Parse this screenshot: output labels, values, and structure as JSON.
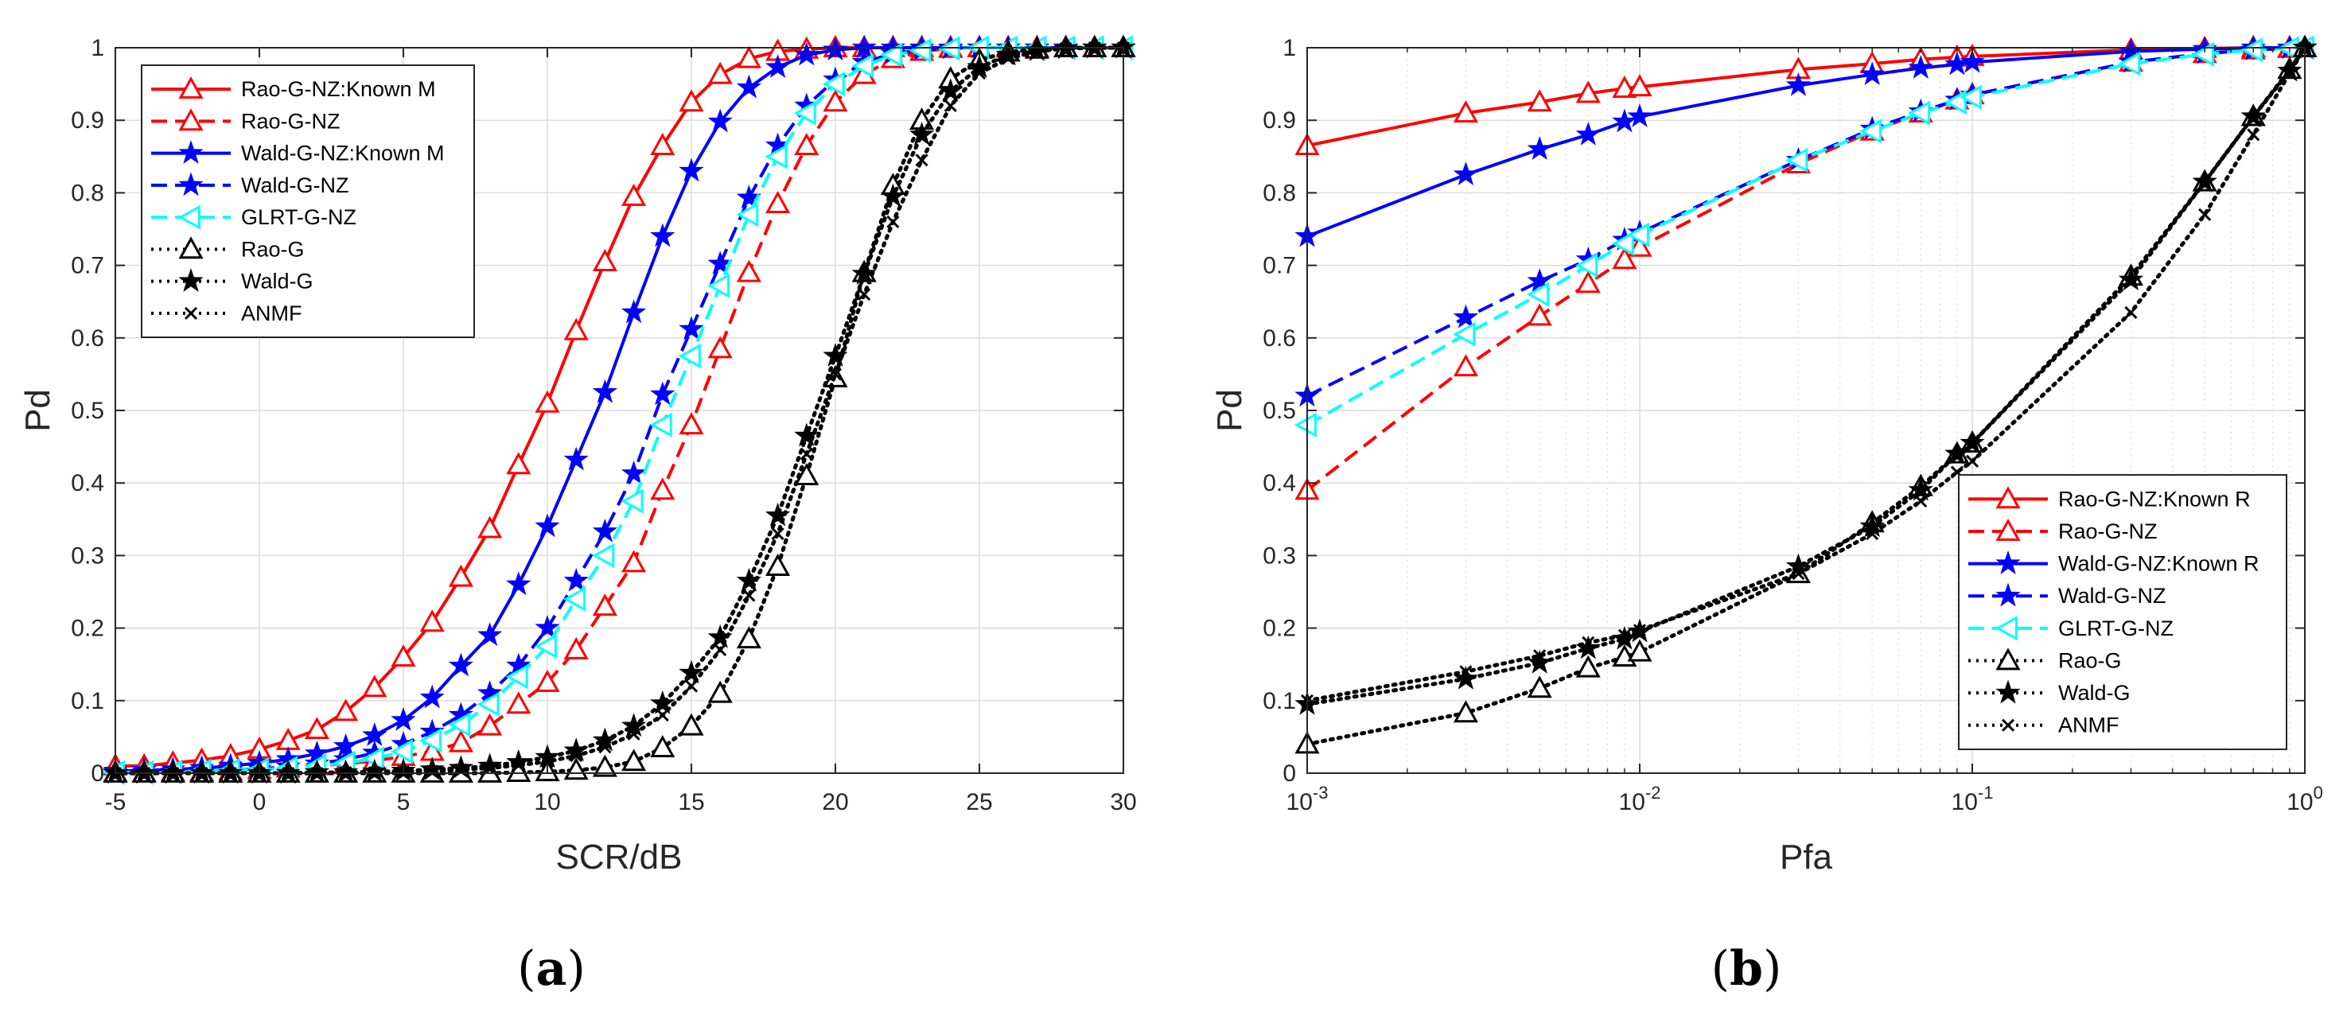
{
  "colors": {
    "red": "#ff0000",
    "blue": "#0000ff",
    "cyan": "#00ffff",
    "black": "#000000",
    "grid": "#dcdcdc",
    "axis": "#262626"
  },
  "chart_data": [
    {
      "type": "line",
      "subplot_label": {
        "open": "(",
        "letter": "a",
        "close": ")"
      },
      "xlabel": "SCR/dB",
      "ylabel": "Pd",
      "xscale": "linear",
      "xlim": [
        -5,
        30
      ],
      "ylim": [
        0,
        1
      ],
      "xticks": [
        -5,
        0,
        5,
        10,
        15,
        20,
        25,
        30
      ],
      "xtick_labels": [
        "-5",
        "0",
        "5",
        "10",
        "15",
        "20",
        "25",
        "30"
      ],
      "yticks": [
        0,
        0.1,
        0.2,
        0.3,
        0.4,
        0.5,
        0.6,
        0.7,
        0.8,
        0.9,
        1
      ],
      "ytick_labels": [
        "0",
        "0.1",
        "0.2",
        "0.3",
        "0.4",
        "0.5",
        "0.6",
        "0.7",
        "0.8",
        "0.9",
        "1"
      ],
      "grid": true,
      "legend_position": "top-left",
      "x": [
        -5,
        -4,
        -3,
        -2,
        -1,
        0,
        1,
        2,
        3,
        4,
        5,
        6,
        7,
        8,
        9,
        10,
        11,
        12,
        13,
        14,
        15,
        16,
        17,
        18,
        19,
        20,
        21,
        22,
        23,
        24,
        25,
        26,
        27,
        28,
        29,
        30
      ],
      "series": [
        {
          "name": "Rao-G-NZ:Known M",
          "color": "#ff0000",
          "dash": "solid",
          "marker": "triangle",
          "values": [
            0.01,
            0.01,
            0.014,
            0.018,
            0.024,
            0.033,
            0.045,
            0.06,
            0.085,
            0.118,
            0.16,
            0.208,
            0.27,
            0.337,
            0.425,
            0.51,
            0.61,
            0.705,
            0.795,
            0.865,
            0.925,
            0.963,
            0.985,
            0.995,
            0.998,
            1,
            1,
            1,
            1,
            1,
            1,
            1,
            1,
            1,
            1,
            1
          ]
        },
        {
          "name": "Rao-G-NZ",
          "color": "#ff0000",
          "dash": "dashed",
          "marker": "triangle",
          "values": [
            0.001,
            0.001,
            0.002,
            0.002,
            0.003,
            0.005,
            0.007,
            0.01,
            0.013,
            0.017,
            0.023,
            0.03,
            0.042,
            0.065,
            0.095,
            0.125,
            0.17,
            0.23,
            0.29,
            0.39,
            0.48,
            0.585,
            0.69,
            0.785,
            0.865,
            0.925,
            0.963,
            0.985,
            0.995,
            0.999,
            1,
            1,
            1,
            1,
            1,
            1
          ]
        },
        {
          "name": "Wald-G-NZ:Known M",
          "color": "#0000ff",
          "dash": "solid",
          "marker": "star",
          "values": [
            0.003,
            0.004,
            0.005,
            0.007,
            0.01,
            0.014,
            0.019,
            0.027,
            0.037,
            0.052,
            0.073,
            0.104,
            0.148,
            0.19,
            0.26,
            0.34,
            0.432,
            0.525,
            0.635,
            0.74,
            0.83,
            0.898,
            0.945,
            0.973,
            0.99,
            0.997,
            1,
            1,
            1,
            1,
            1,
            1,
            1,
            1,
            1,
            1
          ]
        },
        {
          "name": "Wald-G-NZ",
          "color": "#0000ff",
          "dash": "dashed",
          "marker": "star",
          "values": [
            0.001,
            0.001,
            0.002,
            0.003,
            0.004,
            0.006,
            0.009,
            0.013,
            0.019,
            0.028,
            0.04,
            0.057,
            0.08,
            0.11,
            0.148,
            0.2,
            0.265,
            0.333,
            0.413,
            0.522,
            0.612,
            0.702,
            0.793,
            0.865,
            0.92,
            0.956,
            0.98,
            0.992,
            0.997,
            0.999,
            1,
            1,
            1,
            1,
            1,
            1
          ]
        },
        {
          "name": "GLRT-G-NZ",
          "color": "#00ffff",
          "dash": "dashed",
          "marker": "triangle-left",
          "values": [
            0.001,
            0.001,
            0.002,
            0.003,
            0.004,
            0.005,
            0.007,
            0.01,
            0.014,
            0.02,
            0.03,
            0.045,
            0.067,
            0.095,
            0.133,
            0.175,
            0.24,
            0.3,
            0.375,
            0.48,
            0.575,
            0.672,
            0.77,
            0.85,
            0.91,
            0.95,
            0.975,
            0.99,
            0.996,
            0.999,
            1,
            1,
            1,
            1,
            1,
            1
          ]
        },
        {
          "name": "Rao-G",
          "color": "#000000",
          "dash": "dotted",
          "marker": "triangle",
          "values": [
            0,
            0,
            0,
            0,
            0,
            0,
            0,
            0,
            0,
            0,
            0,
            0,
            0,
            0,
            0.001,
            0.002,
            0.004,
            0.008,
            0.016,
            0.035,
            0.065,
            0.11,
            0.185,
            0.285,
            0.41,
            0.545,
            0.69,
            0.81,
            0.9,
            0.957,
            0.983,
            0.994,
            0.998,
            1,
            1,
            1
          ]
        },
        {
          "name": "Wald-G",
          "color": "#000000",
          "dash": "dotted",
          "marker": "star",
          "values": [
            0,
            0,
            0,
            0,
            0,
            0,
            0,
            0.001,
            0.001,
            0.002,
            0.003,
            0.005,
            0.007,
            0.01,
            0.015,
            0.022,
            0.031,
            0.045,
            0.065,
            0.096,
            0.138,
            0.187,
            0.265,
            0.355,
            0.465,
            0.575,
            0.688,
            0.795,
            0.88,
            0.94,
            0.973,
            0.99,
            0.996,
            0.999,
            1,
            1
          ]
        },
        {
          "name": "ANMF",
          "color": "#000000",
          "dash": "dotted",
          "marker": "x",
          "values": [
            0,
            0,
            0,
            0,
            0,
            0,
            0,
            0,
            0.001,
            0.001,
            0.002,
            0.003,
            0.005,
            0.007,
            0.011,
            0.016,
            0.024,
            0.036,
            0.054,
            0.08,
            0.12,
            0.17,
            0.245,
            0.33,
            0.44,
            0.55,
            0.66,
            0.76,
            0.845,
            0.92,
            0.965,
            0.985,
            0.995,
            0.999,
            1,
            1
          ]
        }
      ]
    },
    {
      "type": "line",
      "subplot_label": {
        "open": "(",
        "letter": "b",
        "close": ")"
      },
      "xlabel": "Pfa",
      "ylabel": "Pd",
      "xscale": "log",
      "xlim": [
        0.001,
        1
      ],
      "ylim": [
        0,
        1
      ],
      "xticks": [
        0.001,
        0.01,
        0.1,
        1
      ],
      "xtick_labels": [
        {
          "base": "10",
          "exp": "-3"
        },
        {
          "base": "10",
          "exp": "-2"
        },
        {
          "base": "10",
          "exp": "-1"
        },
        {
          "base": "10",
          "exp": "0"
        }
      ],
      "yticks": [
        0,
        0.1,
        0.2,
        0.3,
        0.4,
        0.5,
        0.6,
        0.7,
        0.8,
        0.9,
        1
      ],
      "ytick_labels": [
        "0",
        "0.1",
        "0.2",
        "0.3",
        "0.4",
        "0.5",
        "0.6",
        "0.7",
        "0.8",
        "0.9",
        "1"
      ],
      "grid": true,
      "legend_position": "bottom-right",
      "x": [
        0.001,
        0.003,
        0.005,
        0.007,
        0.009,
        0.01,
        0.03,
        0.05,
        0.07,
        0.09,
        0.1,
        0.3,
        0.5,
        0.7,
        0.9,
        1
      ],
      "series": [
        {
          "name": "Rao-G-NZ:Known R",
          "color": "#ff0000",
          "dash": "solid",
          "marker": "triangle",
          "values": [
            0.865,
            0.91,
            0.925,
            0.937,
            0.944,
            0.946,
            0.97,
            0.978,
            0.984,
            0.987,
            0.988,
            0.997,
            0.999,
            1,
            1,
            1
          ]
        },
        {
          "name": "Rao-G-NZ",
          "color": "#ff0000",
          "dash": "dashed",
          "marker": "triangle",
          "values": [
            0.39,
            0.56,
            0.63,
            0.675,
            0.708,
            0.725,
            0.84,
            0.885,
            0.91,
            0.928,
            0.935,
            0.98,
            0.992,
            0.997,
            0.999,
            1
          ]
        },
        {
          "name": "Wald-G-NZ:Known R",
          "color": "#0000ff",
          "dash": "solid",
          "marker": "star",
          "values": [
            0.74,
            0.825,
            0.86,
            0.88,
            0.898,
            0.905,
            0.948,
            0.963,
            0.972,
            0.977,
            0.98,
            0.995,
            0.998,
            1,
            1,
            1
          ]
        },
        {
          "name": "Wald-G-NZ",
          "color": "#0000ff",
          "dash": "dashed",
          "marker": "star",
          "values": [
            0.52,
            0.628,
            0.678,
            0.708,
            0.735,
            0.745,
            0.845,
            0.888,
            0.912,
            0.928,
            0.935,
            0.98,
            0.992,
            0.997,
            0.999,
            1
          ]
        },
        {
          "name": "GLRT-G-NZ",
          "color": "#00ffff",
          "dash": "dashed",
          "marker": "triangle-left",
          "values": [
            0.48,
            0.605,
            0.66,
            0.7,
            0.73,
            0.742,
            0.845,
            0.885,
            0.91,
            0.925,
            0.932,
            0.978,
            0.991,
            0.997,
            0.999,
            1
          ]
        },
        {
          "name": "Rao-G",
          "color": "#000000",
          "dash": "dotted",
          "marker": "triangle",
          "values": [
            0.04,
            0.083,
            0.117,
            0.145,
            0.16,
            0.167,
            0.275,
            0.345,
            0.395,
            0.44,
            0.455,
            0.685,
            0.815,
            0.905,
            0.97,
            1
          ]
        },
        {
          "name": "Wald-G",
          "color": "#000000",
          "dash": "dotted",
          "marker": "star",
          "values": [
            0.095,
            0.13,
            0.152,
            0.172,
            0.185,
            0.195,
            0.285,
            0.34,
            0.39,
            0.44,
            0.455,
            0.68,
            0.815,
            0.905,
            0.968,
            1
          ]
        },
        {
          "name": "ANMF",
          "color": "#000000",
          "dash": "dotted",
          "marker": "x",
          "values": [
            0.1,
            0.14,
            0.162,
            0.18,
            0.19,
            0.197,
            0.275,
            0.33,
            0.375,
            0.415,
            0.43,
            0.635,
            0.77,
            0.88,
            0.965,
            1
          ]
        }
      ]
    }
  ]
}
